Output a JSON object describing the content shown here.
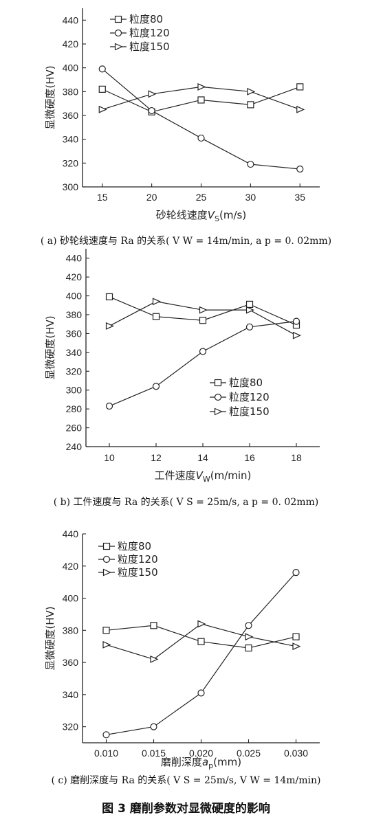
{
  "chart_data": [
    {
      "type": "line",
      "ylabel": "显微硬度(HV)",
      "xlabel_main": "砂轮线速度",
      "xlabel_var": "V",
      "xlabel_sub": "S",
      "xlabel_unit": "(m/s)",
      "x": [
        15,
        20,
        25,
        30,
        35
      ],
      "x_ticks": [
        "15",
        "20",
        "25",
        "30",
        "35"
      ],
      "xlim": [
        13,
        37
      ],
      "ylim": [
        300,
        450
      ],
      "y_ticks": [
        300,
        320,
        340,
        360,
        380,
        400,
        420,
        440
      ],
      "legend_position": "top-left",
      "series": [
        {
          "name": "粒度80",
          "marker": "square",
          "values": [
            382,
            363,
            373,
            369,
            384
          ]
        },
        {
          "name": "粒度120",
          "marker": "circle",
          "values": [
            399,
            364,
            341,
            319,
            315
          ]
        },
        {
          "name": "粒度150",
          "marker": "triangle",
          "values": [
            365,
            378,
            384,
            380,
            365
          ]
        }
      ],
      "caption": "( a) 砂轮线速度与 Ra 的关系( V W = 14m/min, a p = 0. 02mm)"
    },
    {
      "type": "line",
      "ylabel": "显微硬度(HV)",
      "xlabel_main": "工件速度",
      "xlabel_var": "V",
      "xlabel_sub": "W",
      "xlabel_unit": "(m/min)",
      "x": [
        10,
        12,
        14,
        16,
        18
      ],
      "x_ticks": [
        "10",
        "12",
        "14",
        "16",
        "18"
      ],
      "xlim": [
        9,
        19
      ],
      "ylim": [
        240,
        450
      ],
      "y_ticks": [
        240,
        260,
        280,
        300,
        320,
        340,
        360,
        380,
        400,
        420,
        440
      ],
      "legend_position": "bottom-right",
      "series": [
        {
          "name": "粒度80",
          "marker": "square",
          "values": [
            399,
            378,
            374,
            391,
            369
          ]
        },
        {
          "name": "粒度120",
          "marker": "circle",
          "values": [
            283,
            304,
            341,
            367,
            373
          ]
        },
        {
          "name": "粒度150",
          "marker": "triangle",
          "values": [
            368,
            394,
            385,
            385,
            358
          ]
        }
      ],
      "caption": "( b) 工件速度与 Ra 的关系( V S = 25m/s, a p = 0. 02mm)"
    },
    {
      "type": "line",
      "ylabel": "显微硬度(HV)",
      "xlabel_main": "磨削深度",
      "xlabel_var": "a",
      "xlabel_sub": "p",
      "xlabel_unit": "(mm)",
      "x": [
        0.01,
        0.015,
        0.02,
        0.025,
        0.03
      ],
      "x_ticks": [
        "0.010",
        "0.015",
        "0.020",
        "0.025",
        "0.030"
      ],
      "xlim": [
        0.0075,
        0.0325
      ],
      "ylim": [
        310,
        440
      ],
      "y_ticks": [
        320,
        340,
        360,
        380,
        400,
        420,
        440
      ],
      "legend_position": "top-left",
      "series": [
        {
          "name": "粒度80",
          "marker": "square",
          "values": [
            380,
            383,
            373,
            369,
            376
          ]
        },
        {
          "name": "粒度120",
          "marker": "circle",
          "values": [
            315,
            320,
            341,
            383,
            416
          ]
        },
        {
          "name": "粒度150",
          "marker": "triangle",
          "values": [
            371,
            362,
            384,
            376,
            370
          ]
        }
      ],
      "caption": "( c) 磨削深度与 Ra 的关系( V S = 25m/s, V W = 14m/min)"
    }
  ],
  "figure_title": "图 3    磨削参数对显微硬度的影响"
}
